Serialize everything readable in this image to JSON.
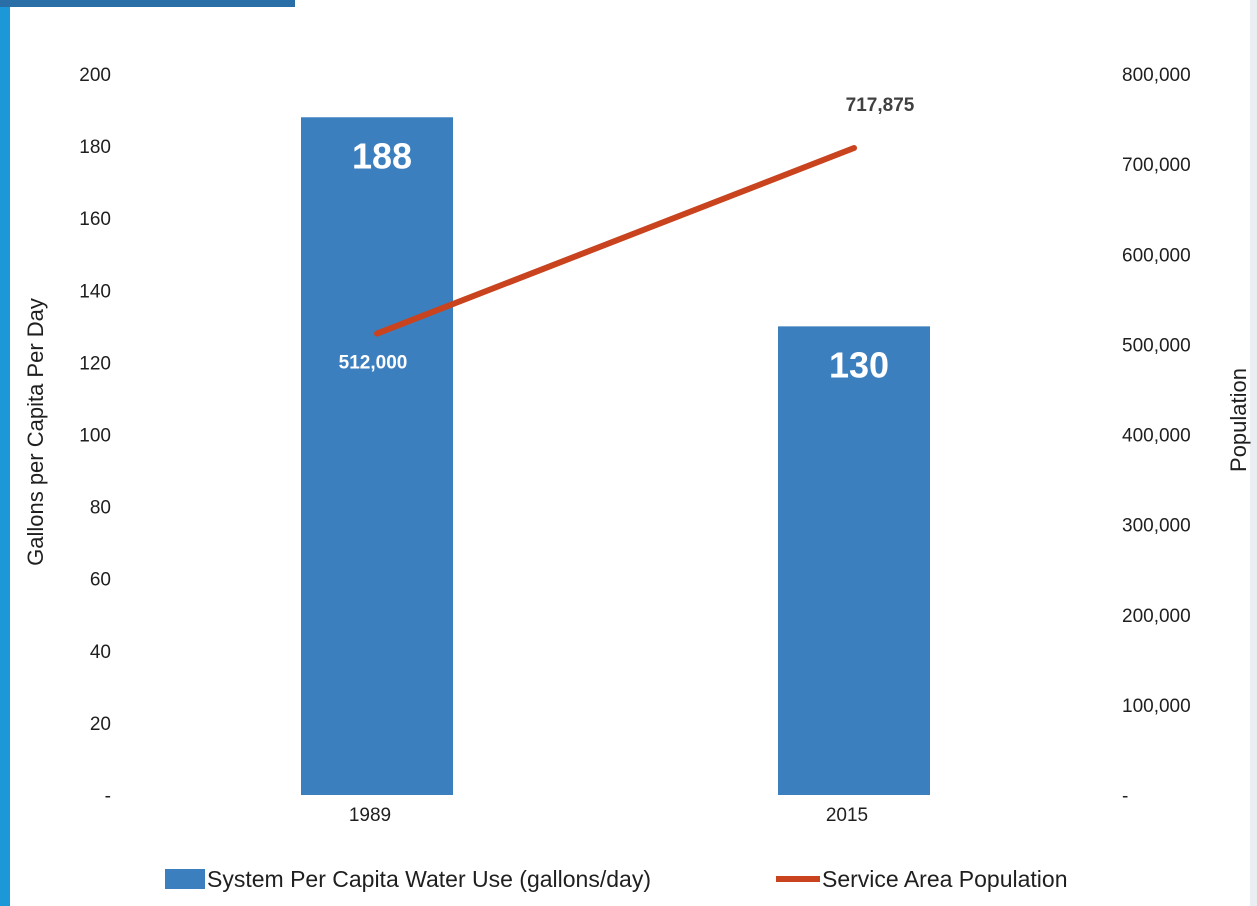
{
  "colors": {
    "bar": "#3c7fbf",
    "line": "#c8431e",
    "frame_accent": "#1c98d8",
    "frame_dark": "#2a6ea8"
  },
  "chart_data": {
    "type": "bar",
    "categories": [
      "1989",
      "2015"
    ],
    "series": [
      {
        "name": "System Per Capita Water Use (gallons/day)",
        "chart": "bar",
        "axis": "left",
        "values": [
          188,
          130
        ],
        "value_labels": [
          "188",
          "130"
        ]
      },
      {
        "name": "Service Area Population",
        "chart": "line",
        "axis": "right",
        "values": [
          512000,
          717875
        ],
        "value_labels": [
          "512,000",
          "717,875"
        ]
      }
    ],
    "ylabel": "Gallons per Capita Per Day",
    "y2label": "Population",
    "ylim": [
      0,
      200
    ],
    "y2lim": [
      0,
      800000
    ],
    "yticks": [
      "-",
      "20",
      "40",
      "60",
      "80",
      "100",
      "120",
      "140",
      "160",
      "180",
      "200"
    ],
    "y2ticks": [
      "-",
      "100,000",
      "200,000",
      "300,000",
      "400,000",
      "500,000",
      "600,000",
      "700,000",
      "800,000"
    ],
    "grid": false,
    "legend_position": "bottom"
  }
}
